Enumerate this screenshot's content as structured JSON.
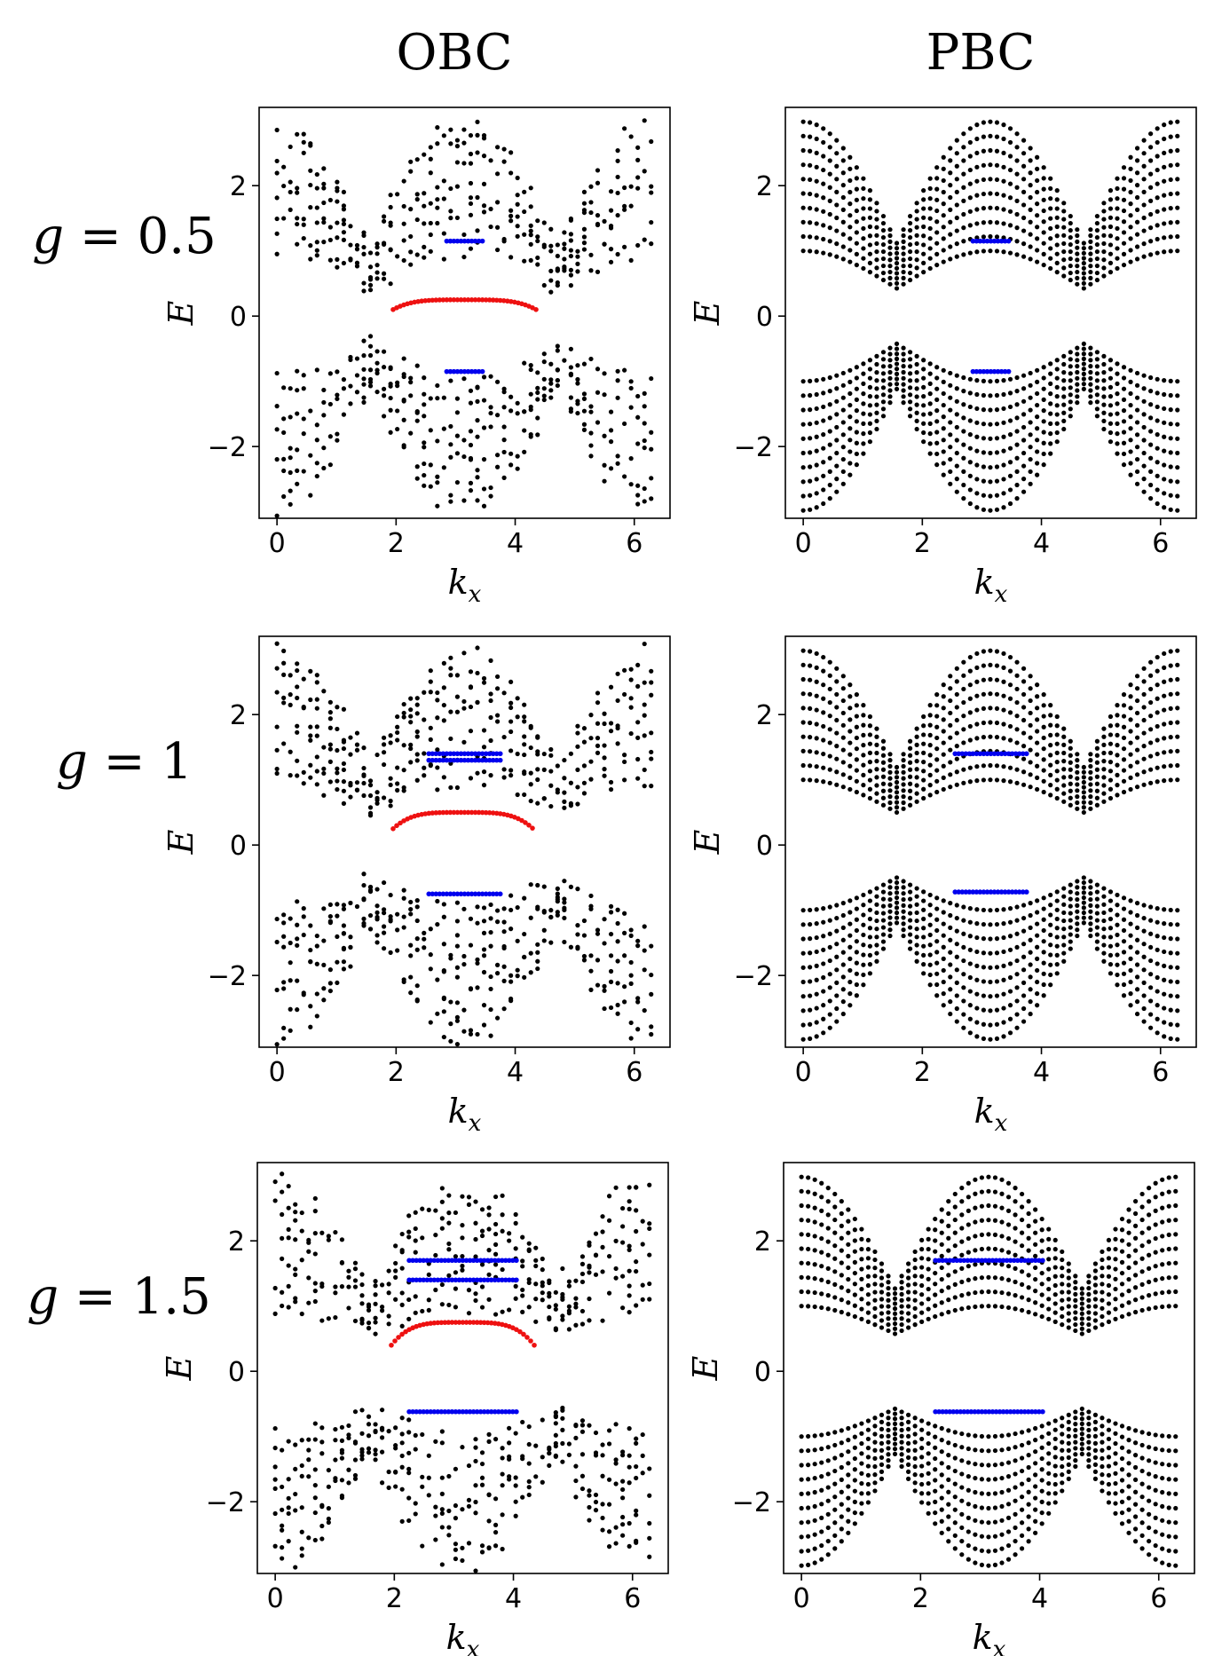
{
  "columns": [
    "OBC",
    "PBC"
  ],
  "rows": [
    {
      "label_var": "g",
      "label_eq": " = ",
      "label_val": "0.5",
      "g": 0.5
    },
    {
      "label_var": "g",
      "label_eq": " = ",
      "label_val": "1",
      "g": 1
    },
    {
      "label_var": "g",
      "label_eq": " = ",
      "label_val": "1.5",
      "g": 1.5
    }
  ],
  "axis": {
    "xlabel_main": "k",
    "xlabel_sub": "x",
    "ylabel": "E",
    "xticks": [
      "0",
      "2",
      "4",
      "6"
    ],
    "yticks": [
      "−2",
      "0",
      "2"
    ],
    "xlim": [
      -0.3,
      6.6
    ],
    "ylim": [
      -3.1,
      3.2
    ]
  },
  "colors": {
    "bulk": "#000000",
    "edge_blue": "#0000ee",
    "edge_red": "#ee1111"
  },
  "chart_data": [
    {
      "type": "scatter",
      "panel": "OBC, g = 0.5",
      "boundary": "OBC",
      "g": 0.5,
      "xlabel": "k_x",
      "ylabel": "E",
      "xlim": [
        0,
        6.28
      ],
      "ylim": [
        -3,
        3
      ],
      "series": [
        {
          "color": "black",
          "description_points": "bulk bands, E from -2.8 to 3.0, gap closing near k_x=1.57 and 4.71"
        },
        {
          "color": "blue",
          "x_range": [
            2.85,
            3.45
          ],
          "y": [
            1.15,
            -0.85
          ]
        },
        {
          "color": "red",
          "x_range": [
            1.95,
            4.35
          ],
          "y_peak": 0.25,
          "y_ends": 0.1
        }
      ]
    },
    {
      "type": "scatter",
      "panel": "PBC, g = 0.5",
      "boundary": "PBC",
      "g": 0.5,
      "xlabel": "k_x",
      "ylabel": "E",
      "xlim": [
        0,
        6.28
      ],
      "ylim": [
        -3,
        3
      ],
      "series": [
        {
          "color": "black",
          "description_points": "bulk bands, E from -3.0 to 3.0"
        },
        {
          "color": "blue",
          "x_range": [
            2.85,
            3.45
          ],
          "y": [
            1.15,
            -0.85
          ]
        }
      ]
    },
    {
      "type": "scatter",
      "panel": "OBC, g = 1",
      "boundary": "OBC",
      "g": 1,
      "xlabel": "k_x",
      "ylabel": "E",
      "xlim": [
        0,
        6.28
      ],
      "ylim": [
        -3,
        3
      ],
      "series": [
        {
          "color": "black"
        },
        {
          "color": "blue",
          "x_range": [
            2.55,
            3.75
          ],
          "y": [
            1.4,
            1.3,
            -0.75
          ]
        },
        {
          "color": "red",
          "x_range": [
            1.95,
            4.3
          ],
          "y_peak": 0.5,
          "y_ends": 0.25
        }
      ]
    },
    {
      "type": "scatter",
      "panel": "PBC, g = 1",
      "boundary": "PBC",
      "g": 1,
      "xlabel": "k_x",
      "ylabel": "E",
      "xlim": [
        0,
        6.28
      ],
      "ylim": [
        -3,
        3
      ],
      "series": [
        {
          "color": "black"
        },
        {
          "color": "blue",
          "x_range": [
            2.55,
            3.75
          ],
          "y": [
            1.4,
            -0.72
          ]
        }
      ]
    },
    {
      "type": "scatter",
      "panel": "OBC, g = 1.5",
      "boundary": "OBC",
      "g": 1.5,
      "xlabel": "k_x",
      "ylabel": "E",
      "xlim": [
        0,
        6.28
      ],
      "ylim": [
        -3,
        3
      ],
      "series": [
        {
          "color": "black"
        },
        {
          "color": "blue",
          "x_range": [
            2.25,
            4.05
          ],
          "y": [
            1.7,
            1.4,
            -0.62
          ]
        },
        {
          "color": "red",
          "x_range": [
            1.95,
            4.35
          ],
          "y_peak": 0.75,
          "y_ends": 0.4
        }
      ]
    },
    {
      "type": "scatter",
      "panel": "PBC, g = 1.5",
      "boundary": "PBC",
      "g": 1.5,
      "xlabel": "k_x",
      "ylabel": "E",
      "xlim": [
        0,
        6.28
      ],
      "ylim": [
        -3,
        3
      ],
      "series": [
        {
          "color": "black"
        },
        {
          "color": "blue",
          "x_range": [
            2.25,
            4.05
          ],
          "y": [
            1.7,
            -0.62
          ]
        }
      ]
    }
  ]
}
